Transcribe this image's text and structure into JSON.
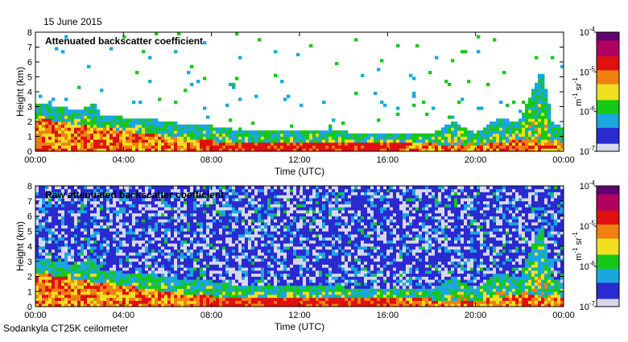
{
  "header": {
    "date": "15 June 2015"
  },
  "footer": {
    "instrument": "Sodankyla CT25K ceilometer"
  },
  "colors": {
    "colormap": [
      "#d8d8ec",
      "#2a2ad0",
      "#1aa7e0",
      "#16c816",
      "#f0e020",
      "#f08010",
      "#e01010",
      "#b00060",
      "#600070"
    ],
    "background": "#ffffff",
    "axis": "#000000"
  },
  "chart_data": [
    {
      "type": "heatmap",
      "title": "Attenuated backscatter coefficient",
      "xlabel": "Time (UTC)",
      "ylabel": "Height (km)",
      "x_ticks": [
        "00:00",
        "04:00",
        "08:00",
        "12:00",
        "16:00",
        "20:00",
        "00:00"
      ],
      "y_ticks": [
        "0",
        "1",
        "2",
        "3",
        "4",
        "5",
        "6",
        "7",
        "8"
      ],
      "xlim": [
        0,
        24
      ],
      "ylim": [
        0,
        8
      ],
      "colorbar": {
        "scale": "log",
        "range": [
          1e-07,
          0.0001
        ],
        "tick_labels": [
          {
            "base": "10",
            "exp": "-4"
          },
          {
            "base": "10",
            "exp": "-5"
          },
          {
            "base": "10",
            "exp": "-6"
          },
          {
            "base": "10",
            "exp": "-7"
          }
        ],
        "unit_label": {
          "m": "m",
          "m_exp": "-1",
          "sr": "sr",
          "sr_exp": "-1"
        }
      },
      "boundary_layer_top_km": [
        {
          "t": 0,
          "h": 3.3
        },
        {
          "t": 1,
          "h": 3.0
        },
        {
          "t": 2,
          "h": 2.8
        },
        {
          "t": 2.7,
          "h": 3.2
        },
        {
          "t": 3,
          "h": 2.5
        },
        {
          "t": 4,
          "h": 2.3
        },
        {
          "t": 5,
          "h": 2.2
        },
        {
          "t": 6,
          "h": 2.0
        },
        {
          "t": 7,
          "h": 1.8
        },
        {
          "t": 8,
          "h": 1.7
        },
        {
          "t": 9,
          "h": 1.5
        },
        {
          "t": 10,
          "h": 1.4
        },
        {
          "t": 12,
          "h": 1.4
        },
        {
          "t": 14,
          "h": 1.3
        },
        {
          "t": 16,
          "h": 1.3
        },
        {
          "t": 18,
          "h": 1.2
        },
        {
          "t": 19,
          "h": 2.0
        },
        {
          "t": 20,
          "h": 1.2
        },
        {
          "t": 21,
          "h": 2.2
        },
        {
          "t": 22,
          "h": 2.0
        },
        {
          "t": 23,
          "h": 5.5
        },
        {
          "t": 23.5,
          "h": 2.0
        },
        {
          "t": 24,
          "h": 1.5
        }
      ],
      "surface_layer_top_km": [
        {
          "t": 0,
          "h": 2.3
        },
        {
          "t": 2,
          "h": 1.8
        },
        {
          "t": 4,
          "h": 1.4
        },
        {
          "t": 6,
          "h": 1.0
        },
        {
          "t": 8,
          "h": 0.7
        },
        {
          "t": 12,
          "h": 0.6
        },
        {
          "t": 16,
          "h": 0.6
        },
        {
          "t": 18,
          "h": 0.5
        },
        {
          "t": 20,
          "h": 0.4
        },
        {
          "t": 22,
          "h": 0.8
        },
        {
          "t": 24,
          "h": 0.5
        }
      ],
      "noise": "low"
    },
    {
      "type": "heatmap",
      "title": "Raw attenuated backscatter coefficient",
      "xlabel": "Time (UTC)",
      "ylabel": "Height (km)",
      "x_ticks": [
        "00:00",
        "04:00",
        "08:00",
        "12:00",
        "16:00",
        "20:00",
        "00:00"
      ],
      "y_ticks": [
        "0",
        "1",
        "2",
        "3",
        "4",
        "5",
        "6",
        "7",
        "8"
      ],
      "xlim": [
        0,
        24
      ],
      "ylim": [
        0,
        8
      ],
      "colorbar": {
        "scale": "log",
        "range": [
          1e-07,
          0.0001
        ],
        "tick_labels": [
          {
            "base": "10",
            "exp": "-4"
          },
          {
            "base": "10",
            "exp": "-5"
          },
          {
            "base": "10",
            "exp": "-6"
          },
          {
            "base": "10",
            "exp": "-7"
          }
        ],
        "unit_label": {
          "m": "m",
          "m_exp": "-1",
          "sr": "sr",
          "sr_exp": "-1"
        }
      },
      "boundary_layer_top_km": [
        {
          "t": 0,
          "h": 3.3
        },
        {
          "t": 1,
          "h": 3.0
        },
        {
          "t": 2,
          "h": 2.8
        },
        {
          "t": 2.7,
          "h": 3.2
        },
        {
          "t": 3,
          "h": 2.5
        },
        {
          "t": 4,
          "h": 2.3
        },
        {
          "t": 5,
          "h": 2.2
        },
        {
          "t": 6,
          "h": 2.0
        },
        {
          "t": 7,
          "h": 1.8
        },
        {
          "t": 8,
          "h": 1.7
        },
        {
          "t": 9,
          "h": 1.5
        },
        {
          "t": 10,
          "h": 1.4
        },
        {
          "t": 12,
          "h": 1.4
        },
        {
          "t": 14,
          "h": 1.3
        },
        {
          "t": 16,
          "h": 1.3
        },
        {
          "t": 18,
          "h": 1.2
        },
        {
          "t": 19,
          "h": 2.0
        },
        {
          "t": 20,
          "h": 1.2
        },
        {
          "t": 21,
          "h": 2.2
        },
        {
          "t": 22,
          "h": 2.0
        },
        {
          "t": 23,
          "h": 5.5
        },
        {
          "t": 23.5,
          "h": 2.0
        },
        {
          "t": 24,
          "h": 1.5
        }
      ],
      "surface_layer_top_km": [
        {
          "t": 0,
          "h": 2.3
        },
        {
          "t": 2,
          "h": 1.8
        },
        {
          "t": 4,
          "h": 1.4
        },
        {
          "t": 6,
          "h": 1.0
        },
        {
          "t": 8,
          "h": 0.7
        },
        {
          "t": 12,
          "h": 0.6
        },
        {
          "t": 16,
          "h": 0.6
        },
        {
          "t": 18,
          "h": 0.5
        },
        {
          "t": 20,
          "h": 0.4
        },
        {
          "t": 22,
          "h": 0.8
        },
        {
          "t": 24,
          "h": 0.5
        }
      ],
      "noise": "high"
    }
  ]
}
